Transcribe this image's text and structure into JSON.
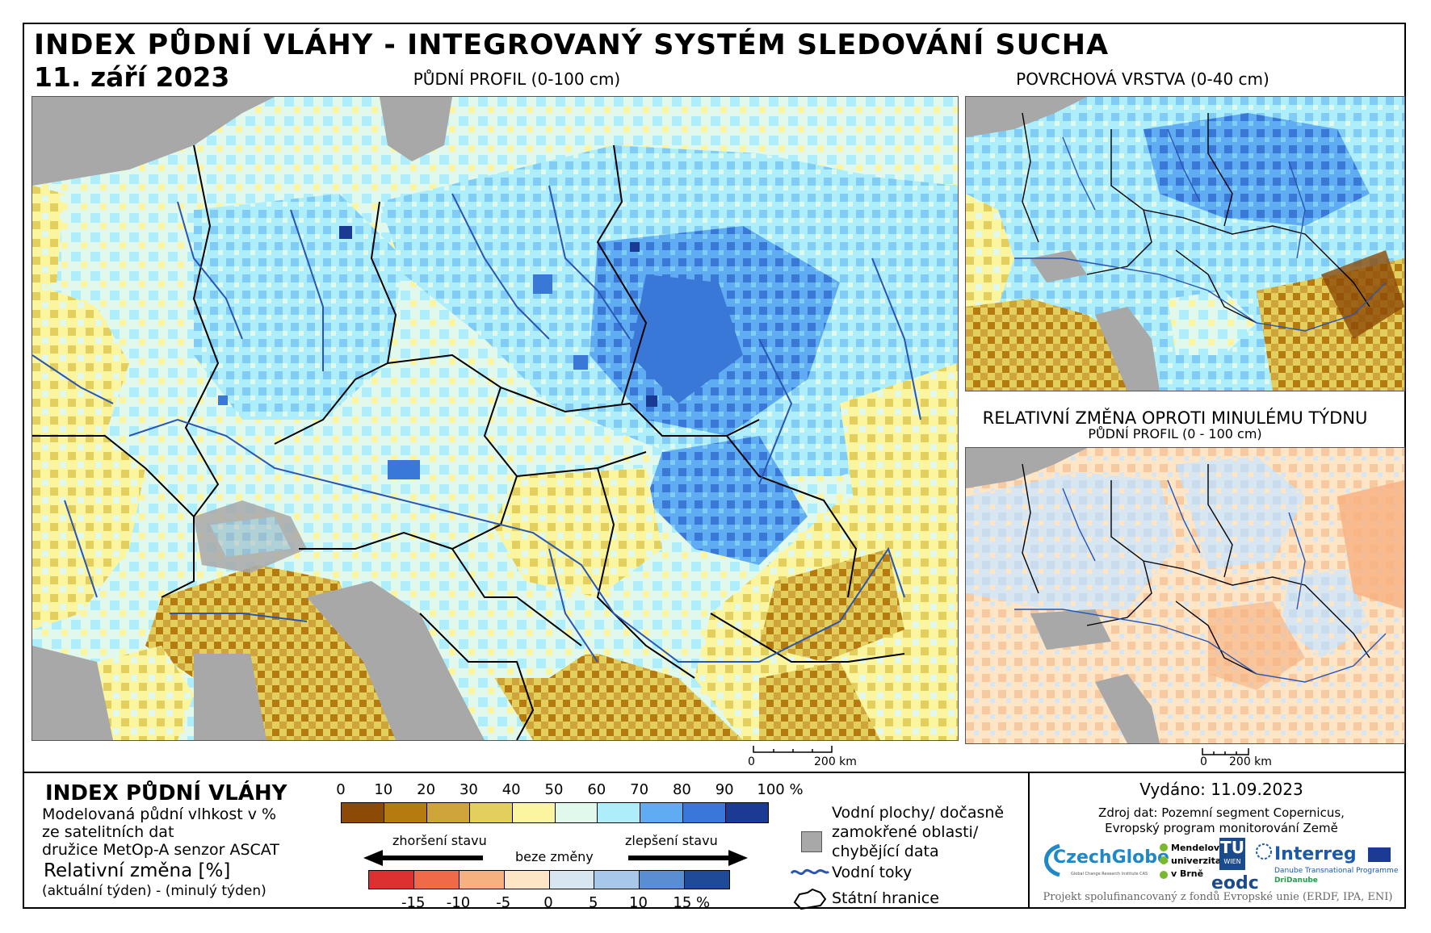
{
  "header": {
    "title": "INDEX PŮDNÍ VLÁHY - INTEGROVANÝ SYSTÉM SLEDOVÁNÍ SUCHA",
    "date": "11. září 2023"
  },
  "maps": {
    "main_subtitle": "PŮDNÍ PROFIL (0-100 cm)",
    "surface_subtitle": "POVRCHOVÁ VRSTVA (0-40 cm)",
    "change_subtitle": "RELATIVNÍ ZMĚNA OPROTI MINULÉMU TÝDNU",
    "change_subtitle2": "PŮDNÍ PROFIL (0 - 100 cm)",
    "scale_main": {
      "zero": "0",
      "end": "200 km"
    },
    "scale_change": {
      "zero": "0",
      "end": "200 km"
    }
  },
  "legend": {
    "title": "INDEX PŮDNÍ VLÁHY",
    "desc1": "Modelovaná půdní vlhkost v %",
    "desc2": "ze satelitních dat",
    "desc3": "družice MetOp-A senzor ASCAT",
    "change_title": "Relativní změna [%]",
    "change_desc": "(aktuální týden) - (minulý týden)",
    "index_ticks": [
      "0",
      "10",
      "20",
      "30",
      "40",
      "50",
      "60",
      "70",
      "80",
      "90",
      "100 %"
    ],
    "index_colors": [
      "#8c4a06",
      "#b57a10",
      "#cfa43a",
      "#e3cf5e",
      "#fbf5a0",
      "#e1f8ec",
      "#aeeefa",
      "#60acf2",
      "#3a78d8",
      "#1a3a94"
    ],
    "change_ticks": [
      "-15",
      "-10",
      "-5",
      "0",
      "5",
      "10",
      "15 %"
    ],
    "change_colors": [
      "#dd3030",
      "#f06a4a",
      "#f7b080",
      "#fde5c6",
      "#d8e6f2",
      "#a8c8ea",
      "#5a8ed2",
      "#1e4a98"
    ],
    "worse": "zhoršení stavu",
    "nochange": "beze změny",
    "better": "zlepšení stavu",
    "water_label1": "Vodní plochy/ dočasně",
    "water_label2": "zamokřené oblasti/",
    "water_label3": "chybějící data",
    "rivers_label": "Vodní toky",
    "borders_label": "Státní hranice",
    "missing_color": "#a8a8a8",
    "river_color": "#2a55b0"
  },
  "footer": {
    "issued": "Vydáno: 11.09.2023",
    "source1": "Zdroj dat: Pozemní segment Copernicus,",
    "source2": "Evropský program monitorování Země",
    "project": "Projekt spolufinancovaný z fondů Evropské unie (ERDF, IPA, ENI)"
  },
  "logos": {
    "czechglobe": "CzechGlobe",
    "czechglobe_sub": "Global Change Research Institute CAS",
    "mendel1": "Mendelova",
    "mendel2": "univerzita",
    "mendel3": "v Brně",
    "tu": "TU",
    "tu_sub": "WIEN",
    "eodc": "eodc",
    "interreg": "Interreg",
    "interreg_sub1": "Danube Transnational Programme",
    "interreg_sub2": "DriDanube"
  }
}
